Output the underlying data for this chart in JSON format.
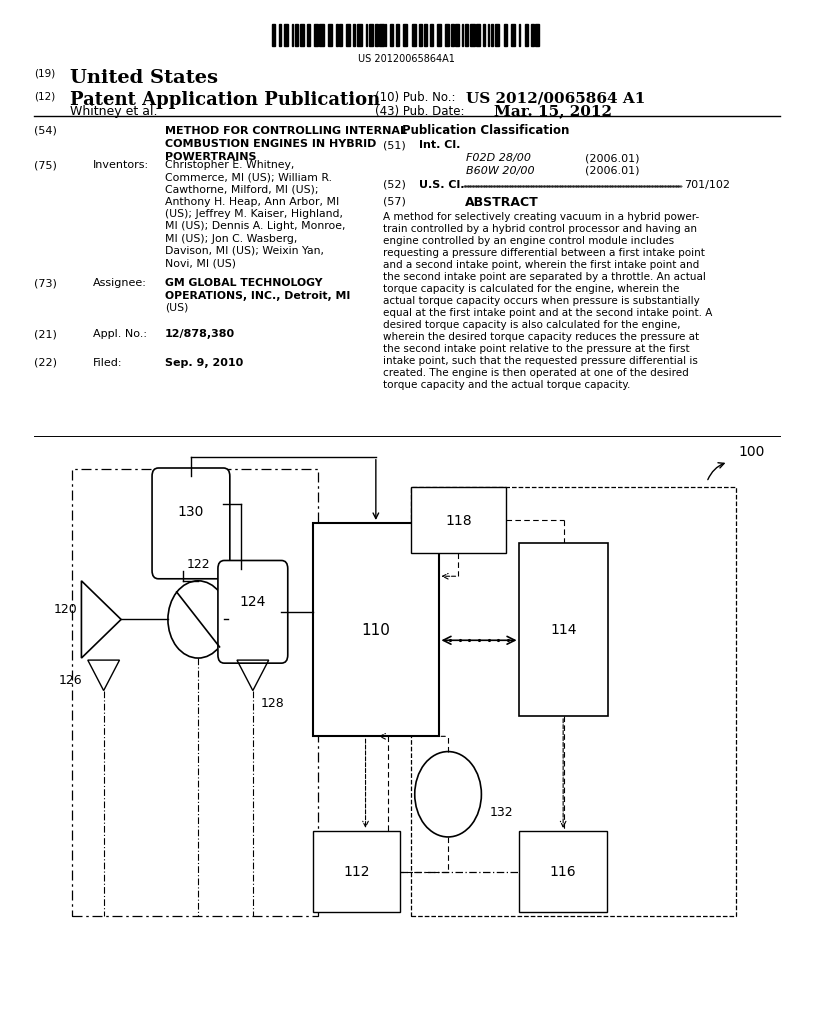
{
  "background_color": "#ffffff",
  "barcode_text": "US 20120065864A1",
  "patent_number": "US 2012/0065864 A1",
  "pub_date": "Mar. 15, 2012",
  "label_19": "United States",
  "label_12_text": "Patent Application Publication",
  "author": "Whitney et al.",
  "section54_title_lines": [
    "METHOD FOR CONTROLLING INTERNAL",
    "COMBUSTION ENGINES IN HYBRID",
    "POWERTRAINS"
  ],
  "inv_text_lines": [
    "Christopher E. Whitney,",
    "Commerce, MI (US); William R.",
    "Cawthorne, Milford, MI (US);",
    "Anthony H. Heap, Ann Arbor, MI",
    "(US); Jeffrey M. Kaiser, Highland,",
    "MI (US); Dennis A. Light, Monroe,",
    "MI (US); Jon C. Wasberg,",
    "Davison, MI (US); Weixin Yan,",
    "Novi, MI (US)"
  ],
  "assignee_lines": [
    "GM GLOBAL TECHNOLOGY",
    "OPERATIONS, INC., Detroit, MI",
    "(US)"
  ],
  "appl_no": "12/878,380",
  "filed": "Sep. 9, 2010",
  "int_cl_1": "F02D 28/00",
  "int_cl_2": "B60W 20/00",
  "int_cl_date": "(2006.01)",
  "us_cl": "701/102",
  "abstract_lines": [
    "A method for selectively creating vacuum in a hybrid power-",
    "train controlled by a hybrid control processor and having an",
    "engine controlled by an engine control module includes",
    "requesting a pressure differential between a first intake point",
    "and a second intake point, wherein the first intake point and",
    "the second intake point are separated by a throttle. An actual",
    "torque capacity is calculated for the engine, wherein the",
    "actual torque capacity occurs when pressure is substantially",
    "equal at the first intake point and at the second intake point. A",
    "desired torque capacity is also calculated for the engine,",
    "wherein the desired torque capacity reduces the pressure at",
    "the second intake point relative to the pressure at the first",
    "intake point, such that the requested pressure differential is",
    "created. The engine is then operated at one of the desired",
    "torque capacity and the actual torque capacity."
  ]
}
